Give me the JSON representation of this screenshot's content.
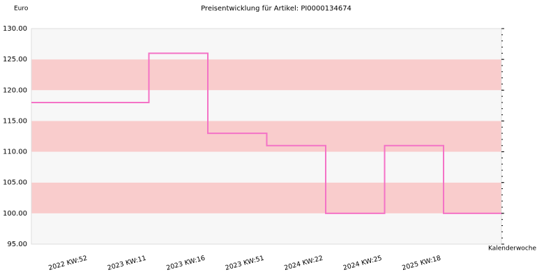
{
  "chart_data": {
    "type": "step",
    "title": "Preisentwicklung für Artikel: PI0000134674",
    "y_label": "Euro",
    "x_label": "Kalenderwoche",
    "categories": [
      "2022 KW:52",
      "2023 KW:11",
      "2023 KW:16",
      "2023 KW:51",
      "2024 KW:22",
      "2024 KW:25",
      "2025 KW:18"
    ],
    "values": [
      118,
      126,
      113,
      111,
      100,
      111,
      100
    ],
    "color": "#f472c6",
    "band_colors": [
      "#f7f7f7",
      "#f9cccc"
    ],
    "ylim": [
      95,
      130
    ],
    "yticks": [
      {
        "value": 95,
        "label": "95.00"
      },
      {
        "value": 100,
        "label": "100.00"
      },
      {
        "value": 105,
        "label": "105.00"
      },
      {
        "value": 110,
        "label": "110.00"
      },
      {
        "value": 115,
        "label": "115.00"
      },
      {
        "value": 120,
        "label": "120.00"
      },
      {
        "value": 125,
        "label": "125.00"
      },
      {
        "value": 130,
        "label": "130.00"
      }
    ]
  }
}
